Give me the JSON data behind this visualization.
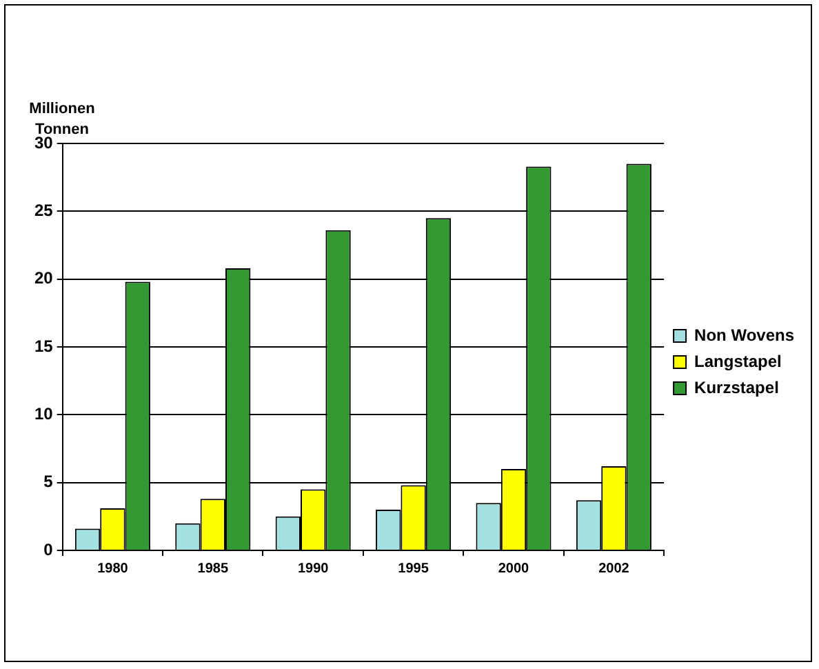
{
  "chart_data": {
    "type": "bar",
    "ylabel": "Millionen Tonnen",
    "categories": [
      "1980",
      "1985",
      "1990",
      "1995",
      "2000",
      "2002"
    ],
    "series": [
      {
        "name": "Non Wovens",
        "color": "#a3e0e0",
        "values": [
          1.6,
          2.0,
          2.5,
          3.0,
          3.5,
          3.7
        ]
      },
      {
        "name": "Langstapel",
        "color": "#ffff00",
        "values": [
          3.1,
          3.8,
          4.5,
          4.8,
          6.0,
          6.2
        ]
      },
      {
        "name": "Kurzstapel",
        "color": "#339933",
        "values": [
          19.8,
          20.8,
          23.6,
          24.5,
          28.3,
          28.5
        ]
      }
    ],
    "ylim": [
      0,
      30
    ],
    "yticks": [
      0,
      5,
      10,
      15,
      20,
      25,
      30
    ],
    "grid": "y",
    "legend": "right"
  }
}
